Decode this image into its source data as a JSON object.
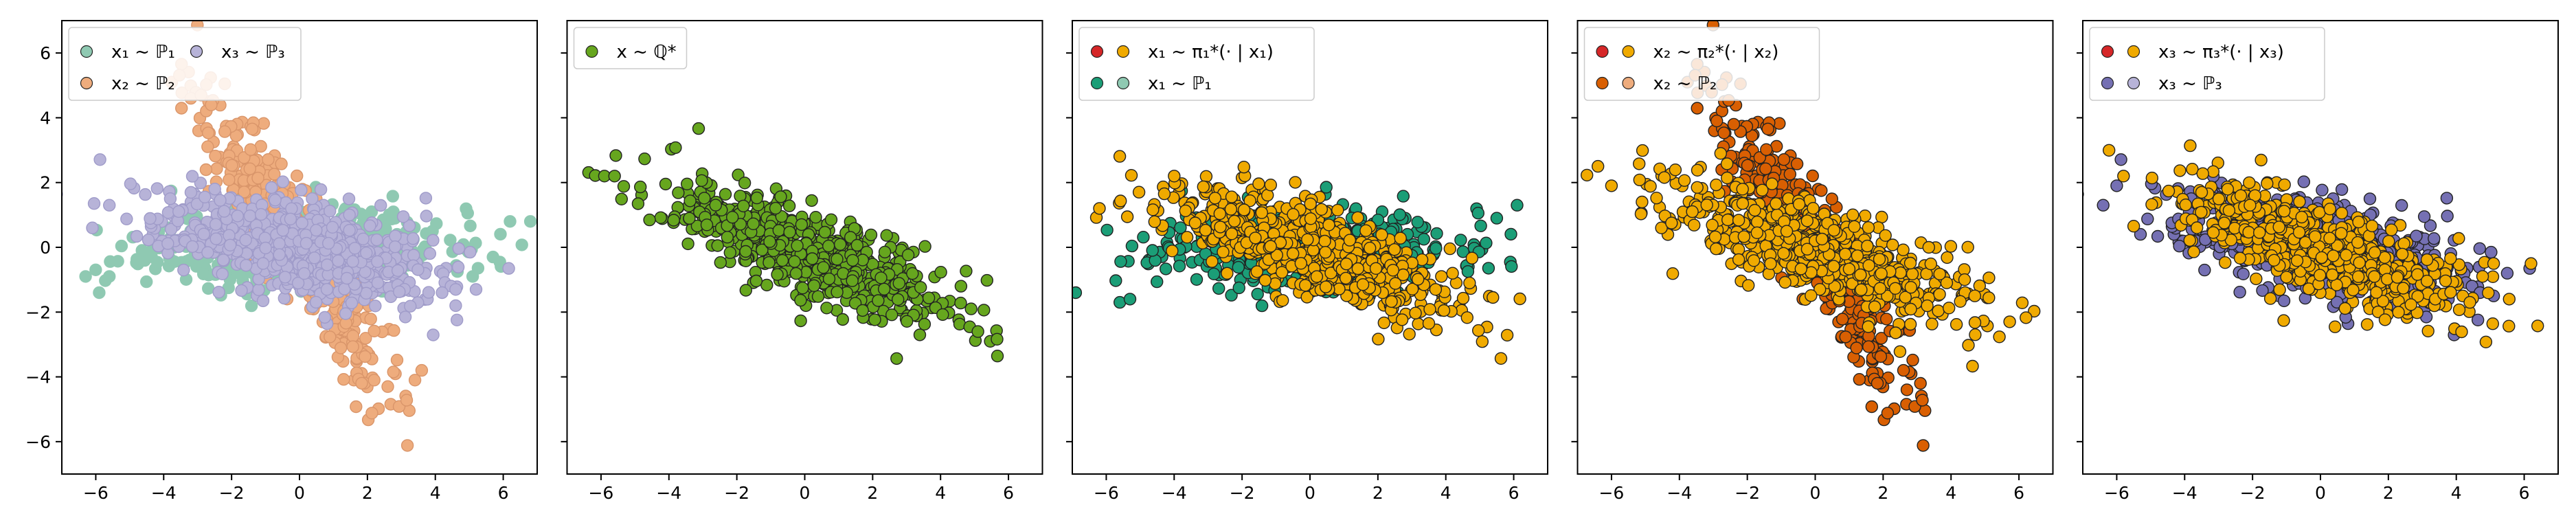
{
  "figure": {
    "panels": [
      {
        "id": "p1",
        "legend": {
          "columns": 2,
          "entries": [
            {
              "label": "x₁ ~ ℙ₁",
              "colors": [
                "#8fc9b2"
              ]
            },
            {
              "label": "x₃ ~ ℙ₃",
              "colors": [
                "#b7b3d8"
              ]
            },
            {
              "label": "x₂ ~ ℙ₂",
              "colors": [
                "#eeac7d"
              ]
            }
          ]
        }
      },
      {
        "id": "p2",
        "legend": {
          "columns": 1,
          "entries": [
            {
              "label": "x ~ ℚ*",
              "colors": [
                "#66a61e"
              ]
            }
          ]
        }
      },
      {
        "id": "p3",
        "legend": {
          "columns": 1,
          "entries": [
            {
              "label": "x₁ ~ π₁*(· | x₁)",
              "colors": [
                "#d62728",
                "#f0aa00"
              ]
            },
            {
              "label": "x₁ ~ ℙ₁",
              "colors": [
                "#1b9e77",
                "#8fc9b2"
              ]
            }
          ]
        }
      },
      {
        "id": "p4",
        "legend": {
          "columns": 1,
          "entries": [
            {
              "label": "x₂ ~ π₂*(· | x₂)",
              "colors": [
                "#d62728",
                "#f0aa00"
              ]
            },
            {
              "label": "x₂ ~ ℙ₂",
              "colors": [
                "#d95f02",
                "#eeac7d"
              ]
            }
          ]
        }
      },
      {
        "id": "p5",
        "legend": {
          "columns": 1,
          "entries": [
            {
              "label": "x₃ ~ π₃*(· | x₃)",
              "colors": [
                "#d62728",
                "#f0aa00"
              ]
            },
            {
              "label": "x₃ ~ ℙ₃",
              "colors": [
                "#7570b3",
                "#b7b3d8"
              ]
            }
          ]
        }
      }
    ]
  },
  "chart_data": [
    {
      "type": "scatter",
      "panel": "p1",
      "xlim": [
        -7,
        7
      ],
      "ylim": [
        -7,
        7
      ],
      "xticks": [
        -6,
        -4,
        -2,
        0,
        2,
        4,
        6
      ],
      "yticks": [
        -6,
        -4,
        -2,
        0,
        2,
        4,
        6
      ],
      "grid": false,
      "legend_position": "top-left",
      "series": [
        {
          "name": "x₁ ~ ℙ₁",
          "color": "#8fc9b2",
          "edge": "#8fc9b2",
          "layer": 0,
          "distribution": {
            "n": 600,
            "mean": [
              0,
              0
            ],
            "cov": [
              [
                4.5,
                0
              ],
              [
                0,
                0.36
              ]
            ],
            "seed": 11
          },
          "extra_points": [
            [
              -6.3,
              -0.9
            ],
            [
              -5.6,
              -0.9
            ],
            [
              6.8,
              0.8
            ],
            [
              6.2,
              0.8
            ],
            [
              5.7,
              -0.3
            ],
            [
              5.1,
              -0.9
            ],
            [
              -5.9,
              -1.4
            ]
          ]
        },
        {
          "name": "x₂ ~ ℙ₂",
          "color": "#eeac7d",
          "edge": "#d9956a",
          "layer": 1,
          "distribution": {
            "n": 500,
            "mean": [
              0,
              0
            ],
            "cov": [
              [
                1.6,
                -2.3
              ],
              [
                -2.3,
                4.1
              ]
            ],
            "seed": 22
          },
          "extra_points": [
            [
              -3.2,
              4.6
            ],
            [
              -2.9,
              4.7
            ],
            [
              -2.6,
              4.4
            ],
            [
              2.6,
              -4.3
            ],
            [
              2.2,
              -4.1
            ],
            [
              3.6,
              -3.8
            ],
            [
              3.4,
              -4.1
            ]
          ]
        },
        {
          "name": "x₃ ~ ℙ₃",
          "color": "#b7b3d8",
          "edge": "#9f9bc9",
          "layer": 2,
          "distribution": {
            "n": 700,
            "mean": [
              0,
              0
            ],
            "cov": [
              [
                4.0,
                -0.9
              ],
              [
                -0.9,
                0.7
              ]
            ],
            "seed": 33
          },
          "extra_points": [
            [
              -6.1,
              0.6
            ],
            [
              -5.6,
              1.3
            ],
            [
              4.2,
              -1.4
            ],
            [
              4.6,
              -1.3
            ],
            [
              5.2,
              -1.3
            ],
            [
              4.6,
              -1.8
            ]
          ]
        }
      ]
    },
    {
      "type": "scatter",
      "panel": "p2",
      "xlim": [
        -7,
        7
      ],
      "ylim": [
        -7,
        7
      ],
      "xticks": [
        -6,
        -4,
        -2,
        0,
        2,
        4,
        6
      ],
      "yticks": [
        -6,
        -4,
        -2,
        0,
        2,
        4,
        6
      ],
      "grid": false,
      "legend_position": "top-left",
      "series": [
        {
          "name": "x ~ ℚ*",
          "color": "#66a61e",
          "edge": "#222222",
          "layer": 0,
          "distribution": {
            "n": 650,
            "mean": [
              0,
              -0.1
            ],
            "cov": [
              [
                4.5,
                -1.7
              ],
              [
                -1.7,
                1.1
              ]
            ],
            "seed": 44
          },
          "extra_points": [
            [
              -5.9,
              2.2
            ],
            [
              -5.6,
              2.2
            ],
            [
              4.9,
              -1.9
            ],
            [
              5.1,
              -2.6
            ],
            [
              4.6,
              -1.2
            ]
          ]
        }
      ]
    },
    {
      "type": "scatter",
      "panel": "p3",
      "xlim": [
        -7,
        7
      ],
      "ylim": [
        -7,
        7
      ],
      "xticks": [
        -6,
        -4,
        -2,
        0,
        2,
        4,
        6
      ],
      "yticks": [
        -6,
        -4,
        -2,
        0,
        2,
        4,
        6
      ],
      "grid": false,
      "legend_position": "top-left",
      "series": [
        {
          "name": "x₁ ~ ℙ₁",
          "color": "#1b9e77",
          "edge": "#222222",
          "layer": 0,
          "distribution": {
            "n": 550,
            "mean": [
              0,
              0
            ],
            "cov": [
              [
                4.5,
                0
              ],
              [
                0,
                0.36
              ]
            ],
            "seed": 11
          },
          "extra_points": [
            [
              -6.9,
              -1.4
            ],
            [
              -5.6,
              -1.7
            ],
            [
              6.1,
              1.3
            ],
            [
              5.5,
              0.9
            ],
            [
              -5.3,
              -1.6
            ]
          ]
        },
        {
          "name": "x₁ ~ π₁*(· | x₁)",
          "color": "#f0aa00",
          "edge": "#222222",
          "layer": 1,
          "distribution": {
            "n": 650,
            "mean": [
              0,
              -0.1
            ],
            "cov": [
              [
                4.5,
                -1.7
              ],
              [
                -1.7,
                1.1
              ]
            ],
            "seed": 55
          },
          "extra_points": [
            [
              -6.2,
              1.2
            ],
            [
              -4.0,
              2.2
            ],
            [
              4.7,
              -1.1
            ],
            [
              4.2,
              -0.8
            ],
            [
              3.7,
              -1.3
            ]
          ]
        }
      ]
    },
    {
      "type": "scatter",
      "panel": "p4",
      "xlim": [
        -7,
        7
      ],
      "ylim": [
        -7,
        7
      ],
      "xticks": [
        -6,
        -4,
        -2,
        0,
        2,
        4,
        6
      ],
      "yticks": [
        -6,
        -4,
        -2,
        0,
        2,
        4,
        6
      ],
      "grid": false,
      "legend_position": "top-left",
      "series": [
        {
          "name": "x₂ ~ ℙ₂",
          "color": "#d95f02",
          "edge": "#222222",
          "layer": 0,
          "distribution": {
            "n": 500,
            "mean": [
              0,
              0
            ],
            "cov": [
              [
                1.6,
                -2.3
              ],
              [
                -2.3,
                4.1
              ]
            ],
            "seed": 22
          },
          "extra_points": [
            [
              -2.9,
              3.9
            ],
            [
              -2.4,
              3.8
            ],
            [
              3.1,
              -4.2
            ],
            [
              2.6,
              -3.8
            ],
            [
              2.7,
              -4.4
            ]
          ]
        },
        {
          "name": "x₂ ~ π₂*(· | x₂)",
          "color": "#f0aa00",
          "edge": "#222222",
          "layer": 1,
          "distribution": {
            "n": 650,
            "mean": [
              0,
              -0.1
            ],
            "cov": [
              [
                4.5,
                -1.7
              ],
              [
                -1.7,
                1.1
              ]
            ],
            "seed": 66
          },
          "extra_points": [
            [
              -6.4,
              2.5
            ],
            [
              -6.0,
              1.9
            ],
            [
              -5.1,
              1.4
            ],
            [
              4.7,
              -1.5
            ],
            [
              4.4,
              -1.0
            ]
          ]
        }
      ]
    },
    {
      "type": "scatter",
      "panel": "p5",
      "xlim": [
        -7,
        7
      ],
      "ylim": [
        -7,
        7
      ],
      "xticks": [
        -6,
        -4,
        -2,
        0,
        2,
        4,
        6
      ],
      "yticks": [
        -6,
        -4,
        -2,
        0,
        2,
        4,
        6
      ],
      "grid": false,
      "legend_position": "top-left",
      "series": [
        {
          "name": "x₃ ~ ℙ₃",
          "color": "#7570b3",
          "edge": "#222222",
          "layer": 0,
          "distribution": {
            "n": 650,
            "mean": [
              0,
              0
            ],
            "cov": [
              [
                4.0,
                -0.9
              ],
              [
                -0.9,
                0.7
              ]
            ],
            "seed": 33
          },
          "extra_points": [
            [
              -6.4,
              1.3
            ],
            [
              -6.0,
              1.9
            ],
            [
              -5.3,
              0.4
            ],
            [
              5.5,
              -0.8
            ],
            [
              4.7,
              -1.4
            ],
            [
              5.1,
              -1.5
            ]
          ]
        },
        {
          "name": "x₃ ~ π₃*(· | x₃)",
          "color": "#f0aa00",
          "edge": "#222222",
          "layer": 1,
          "distribution": {
            "n": 650,
            "mean": [
              0,
              -0.1
            ],
            "cov": [
              [
                4.5,
                -1.7
              ],
              [
                -1.7,
                1.1
              ]
            ],
            "seed": 77
          },
          "extra_points": [
            [
              -5.8,
              2.2
            ],
            [
              -3.5,
              1.7
            ],
            [
              5.1,
              -0.5
            ],
            [
              6.2,
              -0.5
            ],
            [
              4.4,
              -1.7
            ]
          ]
        }
      ]
    }
  ]
}
